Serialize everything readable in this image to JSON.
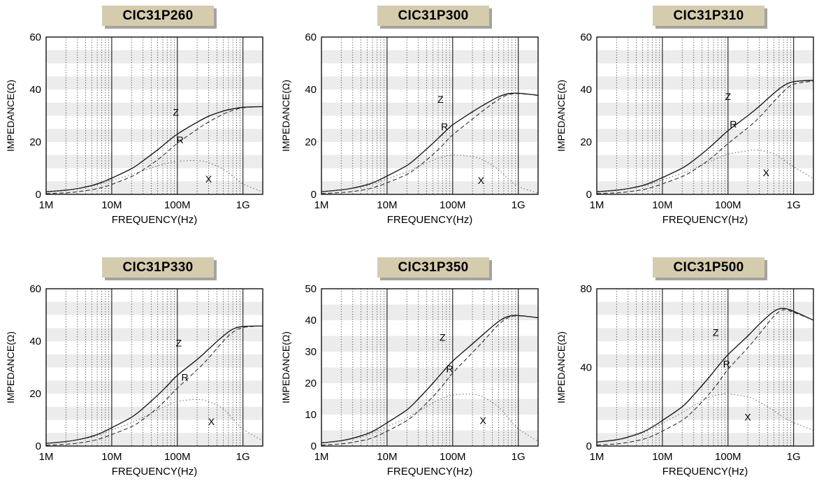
{
  "style": {
    "band_color": "#ececec",
    "grid_color": "#000000",
    "title_bg": "#d5ccae",
    "title_shadow": "#a3a3a3",
    "curve_color_z": "#1a1a1a",
    "curve_color_r": "#333333",
    "curve_color_x": "#777777"
  },
  "chart_data": [
    {
      "type": "line",
      "title": "CIC31P260",
      "xlabel": "FREQUENCY(Hz)",
      "ylabel": "IMPEDANCE(Ω)",
      "xscale": "log",
      "grid": true,
      "legend_position": "inline-labels",
      "xlim": [
        1000000.0,
        2000000000.0
      ],
      "ylim": [
        0,
        60
      ],
      "bands": 12,
      "yticks": [
        0,
        20,
        40,
        60
      ],
      "xticks": [
        {
          "label": "1M",
          "value": 1000000.0
        },
        {
          "label": "10M",
          "value": 10000000.0
        },
        {
          "label": "100M",
          "value": 100000000.0
        },
        {
          "label": "1G",
          "value": 1000000000.0
        }
      ],
      "x": [
        1000000.0,
        2000000.0,
        3000000.0,
        5000000.0,
        7000000.0,
        10000000.0,
        20000000.0,
        30000000.0,
        50000000.0,
        70000000.0,
        100000000.0,
        200000000.0,
        300000000.0,
        500000000.0,
        700000000.0,
        1000000000.0,
        2000000000.0
      ],
      "series": [
        {
          "name": "Z",
          "style": "solid",
          "color": "#1a1a1a",
          "width": 1.4,
          "label_x": 95000000.0,
          "label_y": 30,
          "values": [
            1,
            1.6,
            2.2,
            3.4,
            4.6,
            6.2,
            9.8,
            12.8,
            17,
            20,
            23,
            27.5,
            29.8,
            31.8,
            32.6,
            33.2,
            33.5
          ]
        },
        {
          "name": "R",
          "style": "dashed",
          "color": "#333333",
          "width": 1.1,
          "label_x": 110000000.0,
          "label_y": 19.5,
          "values": [
            0.3,
            0.6,
            1,
            1.8,
            2.6,
            3.8,
            6.8,
            9.3,
            13.2,
            16.2,
            19.5,
            24.8,
            27.6,
            30.6,
            32,
            33,
            33.5
          ]
        },
        {
          "name": "X",
          "style": "dotted",
          "color": "#777777",
          "width": 1.1,
          "label_x": 300000000.0,
          "label_y": 4.5,
          "values": [
            0.9,
            1.5,
            2.1,
            3.1,
            4.1,
            5.3,
            7.6,
            9.1,
            10.9,
            11.9,
            12.6,
            12.9,
            12.1,
            9.6,
            7,
            4,
            1
          ]
        }
      ]
    },
    {
      "type": "line",
      "title": "CIC31P300",
      "xlabel": "FREQUENCY(Hz)",
      "ylabel": "IMPEDANCE(Ω)",
      "xscale": "log",
      "grid": true,
      "legend_position": "inline-labels",
      "xlim": [
        1000000.0,
        2000000000.0
      ],
      "ylim": [
        0,
        60
      ],
      "bands": 12,
      "yticks": [
        0,
        20,
        40,
        60
      ],
      "xticks": [
        {
          "label": "1M",
          "value": 1000000.0
        },
        {
          "label": "10M",
          "value": 10000000.0
        },
        {
          "label": "100M",
          "value": 100000000.0
        },
        {
          "label": "1G",
          "value": 1000000000.0
        }
      ],
      "x": [
        1000000.0,
        2000000.0,
        3000000.0,
        5000000.0,
        7000000.0,
        10000000.0,
        20000000.0,
        30000000.0,
        50000000.0,
        70000000.0,
        100000000.0,
        200000000.0,
        300000000.0,
        500000000.0,
        700000000.0,
        1000000000.0,
        2000000000.0
      ],
      "series": [
        {
          "name": "Z",
          "style": "solid",
          "color": "#1a1a1a",
          "width": 1.4,
          "label_x": 65000000.0,
          "label_y": 35,
          "values": [
            1,
            1.7,
            2.4,
            3.7,
            5.1,
            7,
            11,
            14.5,
            19.5,
            23,
            26.5,
            31.5,
            34.2,
            37.2,
            38.4,
            38.6,
            37.8
          ]
        },
        {
          "name": "R",
          "style": "dashed",
          "color": "#333333",
          "width": 1.1,
          "label_x": 75000000.0,
          "label_y": 24.5,
          "values": [
            0.3,
            0.7,
            1.1,
            2,
            3,
            4.4,
            7.6,
            10.6,
            15.2,
            18.7,
            22.7,
            28.7,
            32.2,
            36.2,
            38,
            38.4,
            37.8
          ]
        },
        {
          "name": "X",
          "style": "dotted",
          "color": "#777777",
          "width": 1.1,
          "label_x": 270000000.0,
          "label_y": 4,
          "values": [
            0.9,
            1.6,
            2.2,
            3.3,
            4.5,
            5.9,
            8.6,
            10.6,
            13,
            14.3,
            15,
            14.4,
            12.9,
            9.4,
            6,
            3,
            0.5
          ]
        }
      ]
    },
    {
      "type": "line",
      "title": "CIC31P310",
      "xlabel": "FREQUENCY(Hz)",
      "ylabel": "IMPEDANCE(Ω)",
      "xscale": "log",
      "grid": true,
      "legend_position": "inline-labels",
      "xlim": [
        1000000.0,
        2000000000.0
      ],
      "ylim": [
        0,
        60
      ],
      "bands": 12,
      "yticks": [
        0,
        20,
        40,
        60
      ],
      "xticks": [
        {
          "label": "1M",
          "value": 1000000.0
        },
        {
          "label": "10M",
          "value": 10000000.0
        },
        {
          "label": "100M",
          "value": 100000000.0
        },
        {
          "label": "1G",
          "value": 1000000000.0
        }
      ],
      "x": [
        1000000.0,
        2000000.0,
        3000000.0,
        5000000.0,
        7000000.0,
        10000000.0,
        20000000.0,
        30000000.0,
        50000000.0,
        70000000.0,
        100000000.0,
        200000000.0,
        300000000.0,
        500000000.0,
        700000000.0,
        1000000000.0,
        2000000000.0
      ],
      "series": [
        {
          "name": "Z",
          "style": "solid",
          "color": "#1a1a1a",
          "width": 1.4,
          "label_x": 100000000.0,
          "label_y": 36,
          "values": [
            1,
            1.6,
            2.2,
            3.4,
            4.7,
            6.4,
            10,
            13,
            17.5,
            20.8,
            24.3,
            30,
            33.6,
            38.6,
            41.4,
            43,
            43.5
          ]
        },
        {
          "name": "R",
          "style": "dashed",
          "color": "#333333",
          "width": 1.1,
          "label_x": 120000000.0,
          "label_y": 25.5,
          "values": [
            0.3,
            0.6,
            1,
            1.8,
            2.7,
            4,
            6.8,
            9.2,
            13,
            16,
            19.4,
            25.4,
            29.4,
            35.4,
            39.2,
            42,
            43.2
          ]
        },
        {
          "name": "X",
          "style": "dotted",
          "color": "#777777",
          "width": 1.1,
          "label_x": 380000000.0,
          "label_y": 7,
          "values": [
            0.9,
            1.5,
            2.1,
            3.1,
            4.2,
            5.5,
            8,
            9.9,
            12.3,
            13.9,
            15.3,
            16.6,
            16.8,
            15.4,
            13.2,
            10.5,
            6
          ]
        }
      ]
    },
    {
      "type": "line",
      "title": "CIC31P330",
      "xlabel": "FREQUENCY(Hz)",
      "ylabel": "IMPEDANCE(Ω)",
      "xscale": "log",
      "grid": true,
      "legend_position": "inline-labels",
      "xlim": [
        1000000.0,
        2000000000.0
      ],
      "ylim": [
        0,
        60
      ],
      "bands": 12,
      "yticks": [
        0,
        20,
        40,
        60
      ],
      "xticks": [
        {
          "label": "1M",
          "value": 1000000.0
        },
        {
          "label": "10M",
          "value": 10000000.0
        },
        {
          "label": "100M",
          "value": 100000000.0
        },
        {
          "label": "1G",
          "value": 1000000000.0
        }
      ],
      "x": [
        1000000.0,
        2000000.0,
        3000000.0,
        5000000.0,
        7000000.0,
        10000000.0,
        20000000.0,
        30000000.0,
        50000000.0,
        70000000.0,
        100000000.0,
        200000000.0,
        300000000.0,
        500000000.0,
        700000000.0,
        1000000000.0,
        2000000000.0
      ],
      "series": [
        {
          "name": "Z",
          "style": "solid",
          "color": "#1a1a1a",
          "width": 1.4,
          "label_x": 105000000.0,
          "label_y": 38,
          "values": [
            1,
            1.7,
            2.4,
            3.7,
            5.1,
            7,
            11,
            14.4,
            19.4,
            23,
            27,
            33,
            37,
            42,
            44.6,
            45.6,
            45.8
          ]
        },
        {
          "name": "R",
          "style": "dashed",
          "color": "#333333",
          "width": 1.1,
          "label_x": 130000000.0,
          "label_y": 25,
          "values": [
            0.3,
            0.7,
            1.1,
            2,
            3,
            4.4,
            7.4,
            10.2,
            14.6,
            18.1,
            22.1,
            29.1,
            33.6,
            40,
            43.4,
            45.2,
            45.8
          ]
        },
        {
          "name": "X",
          "style": "dotted",
          "color": "#777777",
          "width": 1.1,
          "label_x": 330000000.0,
          "label_y": 8,
          "values": [
            0.9,
            1.6,
            2.3,
            3.4,
            4.6,
            6.1,
            8.9,
            11,
            13.8,
            15.5,
            17,
            17.8,
            17,
            14.2,
            10.4,
            6.5,
            2
          ]
        }
      ]
    },
    {
      "type": "line",
      "title": "CIC31P350",
      "xlabel": "FREQUENCY(Hz)",
      "ylabel": "IMPEDANCE(Ω)",
      "xscale": "log",
      "grid": true,
      "legend_position": "inline-labels",
      "xlim": [
        1000000.0,
        2000000000.0
      ],
      "ylim": [
        0,
        50
      ],
      "bands": 10,
      "yticks": [
        0,
        10,
        20,
        30,
        40,
        50
      ],
      "xticks": [
        {
          "label": "1M",
          "value": 1000000.0
        },
        {
          "label": "10M",
          "value": 10000000.0
        },
        {
          "label": "100M",
          "value": 100000000.0
        },
        {
          "label": "1G",
          "value": 1000000000.0
        }
      ],
      "x": [
        1000000.0,
        2000000.0,
        3000000.0,
        5000000.0,
        7000000.0,
        10000000.0,
        20000000.0,
        30000000.0,
        50000000.0,
        70000000.0,
        100000000.0,
        200000000.0,
        300000000.0,
        500000000.0,
        700000000.0,
        1000000000.0,
        2000000000.0
      ],
      "series": [
        {
          "name": "Z",
          "style": "solid",
          "color": "#1a1a1a",
          "width": 1.4,
          "label_x": 70000000.0,
          "label_y": 33.5,
          "values": [
            1,
            1.7,
            2.5,
            3.9,
            5.4,
            7.4,
            11.5,
            15,
            20,
            23.5,
            27,
            32.5,
            35.7,
            39.6,
            41.2,
            41.5,
            40.8
          ]
        },
        {
          "name": "R",
          "style": "dashed",
          "color": "#333333",
          "width": 1.1,
          "label_x": 90000000.0,
          "label_y": 23.5,
          "values": [
            0.3,
            0.7,
            1.2,
            2.1,
            3.2,
            4.7,
            8.1,
            11.1,
            15.7,
            19.2,
            23.2,
            29.7,
            33.6,
            38.6,
            40.8,
            41.4,
            40.8
          ]
        },
        {
          "name": "X",
          "style": "dotted",
          "color": "#777777",
          "width": 1.1,
          "label_x": 290000000.0,
          "label_y": 7,
          "values": [
            0.9,
            1.6,
            2.3,
            3.4,
            4.7,
            6.1,
            9,
            11,
            13.7,
            15.2,
            16.2,
            16.5,
            15.4,
            12.4,
            9,
            5.5,
            1.5
          ]
        }
      ]
    },
    {
      "type": "line",
      "title": "CIC31P500",
      "xlabel": "FREQUENCY(Hz)",
      "ylabel": "IMPEDANCE(Ω)",
      "xscale": "log",
      "grid": true,
      "legend_position": "inline-labels",
      "xlim": [
        1000000.0,
        2000000000.0
      ],
      "ylim": [
        0,
        80
      ],
      "bands": 12,
      "yticks": [
        0,
        40,
        80
      ],
      "xticks": [
        {
          "label": "1M",
          "value": 1000000.0
        },
        {
          "label": "10M",
          "value": 10000000.0
        },
        {
          "label": "100M",
          "value": 100000000.0
        },
        {
          "label": "1G",
          "value": 1000000000.0
        }
      ],
      "x": [
        1000000.0,
        2000000.0,
        3000000.0,
        5000000.0,
        7000000.0,
        10000000.0,
        20000000.0,
        30000000.0,
        50000000.0,
        70000000.0,
        100000000.0,
        200000000.0,
        300000000.0,
        500000000.0,
        700000000.0,
        1000000000.0,
        2000000000.0
      ],
      "series": [
        {
          "name": "Z",
          "style": "solid",
          "color": "#1a1a1a",
          "width": 1.4,
          "label_x": 65000000.0,
          "label_y": 56,
          "values": [
            2,
            3.2,
            4.6,
            7.1,
            9.7,
            13,
            20,
            26,
            34.5,
            40.5,
            46.5,
            56,
            62,
            68.5,
            70,
            68.5,
            64
          ]
        },
        {
          "name": "R",
          "style": "dashed",
          "color": "#333333",
          "width": 1.1,
          "label_x": 95000000.0,
          "label_y": 40,
          "values": [
            0.5,
            1.1,
            1.9,
            3.4,
            5.1,
            7.6,
            13.1,
            18.1,
            26,
            32,
            39,
            50,
            57,
            66,
            69.3,
            68,
            64
          ]
        },
        {
          "name": "X",
          "style": "dotted",
          "color": "#777777",
          "width": 1.1,
          "label_x": 200000000.0,
          "label_y": 13,
          "values": [
            1.8,
            3,
            4.3,
            6.6,
            8.9,
            11.6,
            17,
            20.6,
            24.6,
            26.1,
            26.5,
            25,
            22.4,
            18,
            14.6,
            12,
            8
          ]
        }
      ]
    }
  ]
}
